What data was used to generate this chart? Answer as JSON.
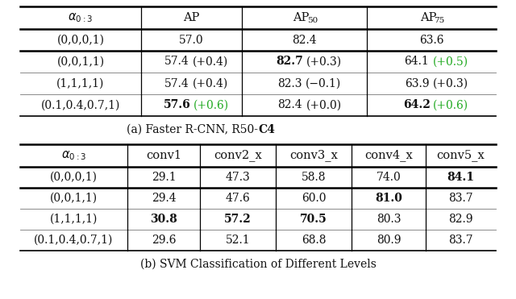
{
  "table_a": {
    "headers": [
      "α₀∶₃",
      "AP",
      "AP₅₀",
      "AP₇₅"
    ],
    "baseline_row": [
      "(0,0,0,1)",
      "57.0",
      "82.4",
      "63.6"
    ],
    "rows": [
      {
        "alpha": "(0,0,1,1)",
        "AP": {
          "main": "57.4",
          "diff": "(+0.4)",
          "main_bold": false,
          "diff_green": false
        },
        "AP50": {
          "main": "82.7",
          "diff": "(+0.3)",
          "main_bold": true,
          "diff_green": false
        },
        "AP75": {
          "main": "64.1",
          "diff": "(+0.5)",
          "main_bold": false,
          "diff_green": true
        }
      },
      {
        "alpha": "(1,1,1,1)",
        "AP": {
          "main": "57.4",
          "diff": "(+0.4)",
          "main_bold": false,
          "diff_green": false
        },
        "AP50": {
          "main": "82.3",
          "diff": "(−0.1)",
          "main_bold": false,
          "diff_green": false
        },
        "AP75": {
          "main": "63.9",
          "diff": "(+0.3)",
          "main_bold": false,
          "diff_green": false
        }
      },
      {
        "alpha": "(0.1,0.4,0.7,1)",
        "AP": {
          "main": "57.6",
          "diff": "(+0.6)",
          "main_bold": true,
          "diff_green": true
        },
        "AP50": {
          "main": "82.4",
          "diff": "(+0.0)",
          "main_bold": false,
          "diff_green": false
        },
        "AP75": {
          "main": "64.2",
          "diff": "(+0.6)",
          "main_bold": true,
          "diff_green": true
        }
      }
    ],
    "caption_normal": "(a) Faster R-CNN, R50-",
    "caption_bold": "C4"
  },
  "table_b": {
    "headers": [
      "α₀∶₃",
      "conv1",
      "conv2_x",
      "conv3_x",
      "conv4_x",
      "conv5_x"
    ],
    "baseline_row": [
      "(0,0,0,1)",
      "29.1",
      "47.3",
      "58.8",
      "74.0",
      "84.1"
    ],
    "baseline_bold": [
      false,
      false,
      false,
      false,
      true
    ],
    "rows": [
      {
        "alpha": "(0,0,1,1)",
        "values": [
          "29.4",
          "47.6",
          "60.0",
          "81.0",
          "83.7"
        ],
        "bold": [
          false,
          false,
          false,
          true,
          false
        ]
      },
      {
        "alpha": "(1,1,1,1)",
        "values": [
          "30.8",
          "57.2",
          "70.5",
          "80.3",
          "82.9"
        ],
        "bold": [
          true,
          true,
          true,
          false,
          false
        ]
      },
      {
        "alpha": "(0.1,0.4,0.7,1)",
        "values": [
          "29.6",
          "52.1",
          "68.8",
          "80.9",
          "83.7"
        ],
        "bold": [
          false,
          false,
          false,
          false,
          false
        ]
      }
    ],
    "caption": "(b) SVM Classification of Different Levels"
  },
  "green_color": "#22aa22",
  "black_color": "#111111",
  "fig_width": 6.4,
  "fig_height": 3.71,
  "dpi": 100,
  "fs_header": 10.5,
  "fs_cell": 10.0
}
